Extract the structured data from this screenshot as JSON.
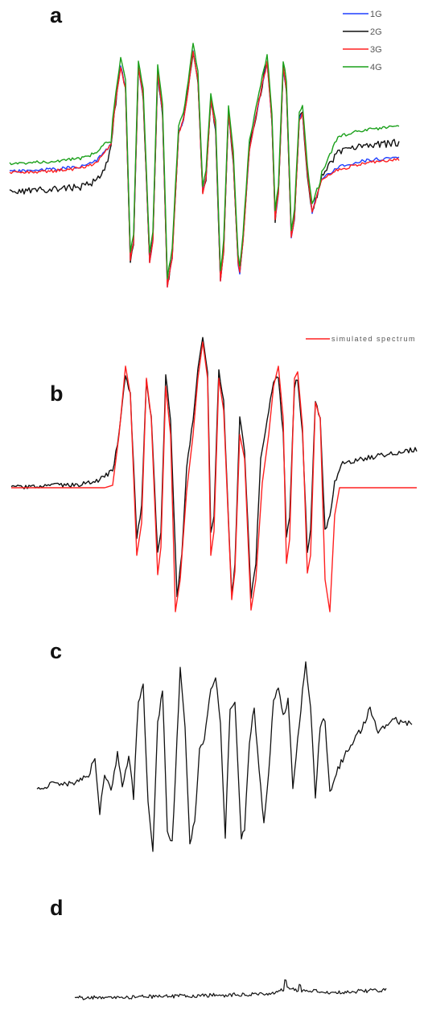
{
  "chart_data": [
    {
      "panel": "a",
      "type": "line",
      "legend_position": "top-right",
      "grid": false,
      "axes_visible": false,
      "series": [
        {
          "name": "1G",
          "color": "#1f3fff"
        },
        {
          "name": "2G",
          "color": "#111111"
        },
        {
          "name": "3G",
          "color": "#ff2020"
        },
        {
          "name": "4G",
          "color": "#1aa01a"
        }
      ]
    },
    {
      "panel": "b",
      "type": "line",
      "legend_position": "top-right",
      "grid": false,
      "axes_visible": false,
      "series": [
        {
          "name": "",
          "color": "#111111"
        },
        {
          "name": "simulated spectrum",
          "color": "#ff2020"
        }
      ]
    },
    {
      "panel": "c",
      "type": "line",
      "grid": false,
      "axes_visible": false,
      "series": [
        {
          "name": "",
          "color": "#111111"
        }
      ]
    },
    {
      "panel": "d",
      "type": "line",
      "grid": false,
      "axes_visible": false,
      "series": [
        {
          "name": "",
          "color": "#111111"
        }
      ]
    }
  ]
}
